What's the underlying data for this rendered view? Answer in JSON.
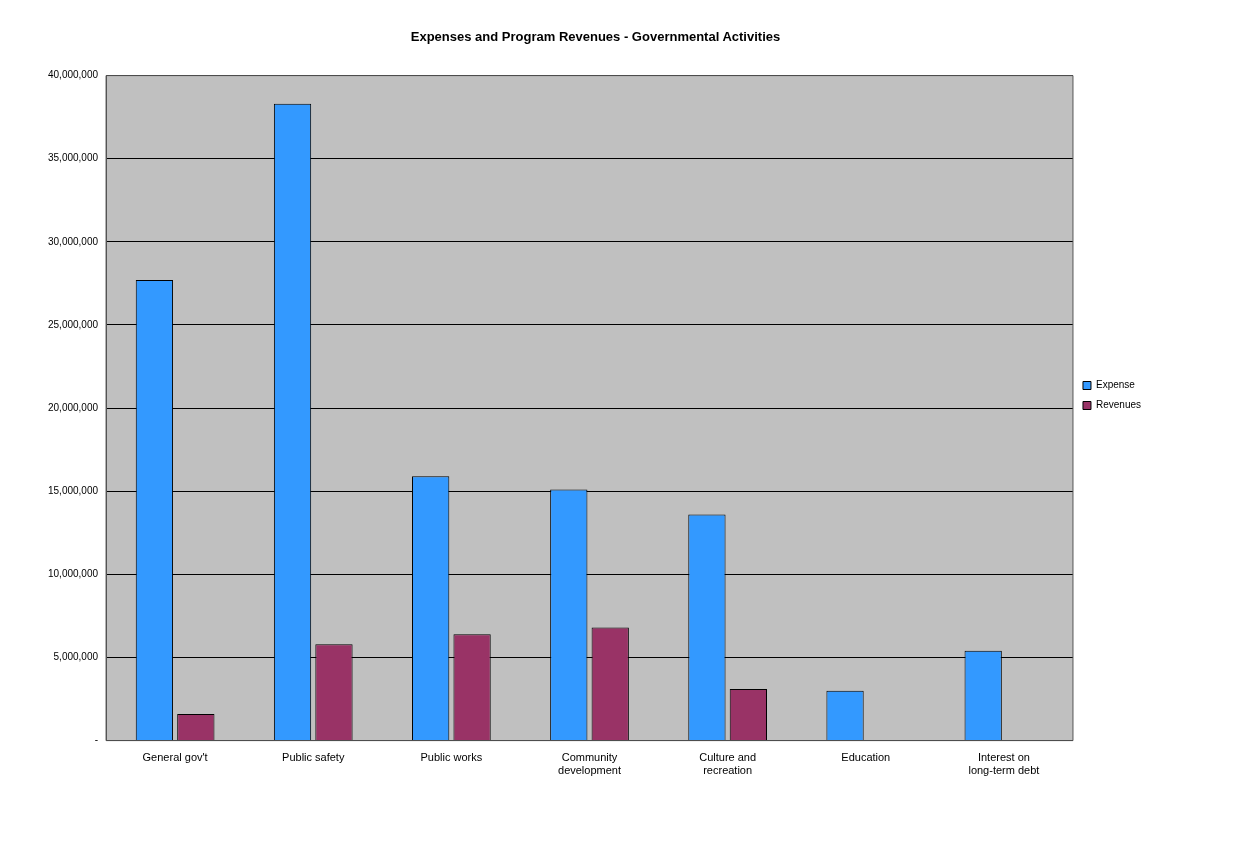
{
  "chart_data": {
    "type": "bar",
    "title": "Expenses and Program Revenues - Governmental Activities",
    "categories": [
      "General gov't",
      "Public safety",
      "Public works",
      "Community development",
      "Culture and recreation",
      "Education",
      "Interest on long-term debt"
    ],
    "series": [
      {
        "name": "Expense",
        "color": "#3399ff",
        "values": [
          27700000,
          38300000,
          15900000,
          15100000,
          13600000,
          3000000,
          5400000
        ]
      },
      {
        "name": "Revenues",
        "color": "#993366",
        "values": [
          1600000,
          5800000,
          6400000,
          6800000,
          3100000,
          0,
          0
        ]
      }
    ],
    "ylim": [
      0,
      40000000
    ],
    "yticks": [
      {
        "value": 0,
        "label": "-"
      },
      {
        "value": 5000000,
        "label": "5,000,000"
      },
      {
        "value": 10000000,
        "label": "10,000,000"
      },
      {
        "value": 15000000,
        "label": "15,000,000"
      },
      {
        "value": 20000000,
        "label": "20,000,000"
      },
      {
        "value": 25000000,
        "label": "25,000,000"
      },
      {
        "value": 30000000,
        "label": "30,000,000"
      },
      {
        "value": 35000000,
        "label": "35,000,000"
      },
      {
        "value": 40000000,
        "label": "40,000,000"
      }
    ],
    "grid": "y",
    "legend": "right"
  }
}
